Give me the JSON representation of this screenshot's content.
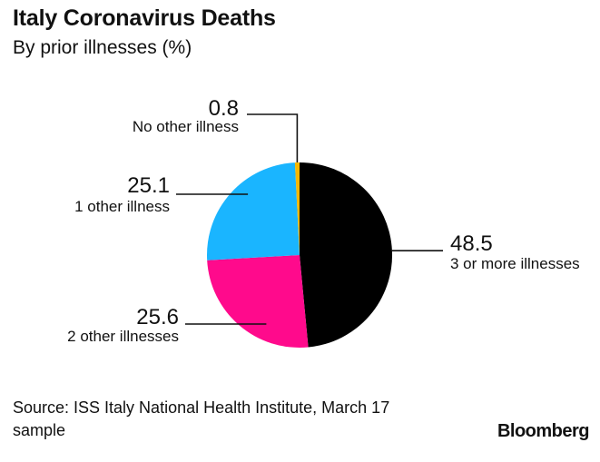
{
  "chart_data": {
    "type": "pie",
    "title": "Italy Coronavirus Deaths",
    "subtitle": "By prior illnesses (%)",
    "slices": [
      {
        "label": "3 or more illnesses",
        "value": 48.5,
        "value_label": "48.5",
        "color": "#000000"
      },
      {
        "label": "2 other illnesses",
        "value": 25.6,
        "value_label": "25.6",
        "color": "#ff0a8c"
      },
      {
        "label": "1 other illness",
        "value": 25.1,
        "value_label": "25.1",
        "color": "#1ab5ff"
      },
      {
        "label": "No other illness",
        "value": 0.8,
        "value_label": "0.8",
        "color": "#f5b700"
      }
    ],
    "source": "Source: ISS Italy National Health Institute, March 17 sample"
  },
  "brand": "Bloomberg"
}
